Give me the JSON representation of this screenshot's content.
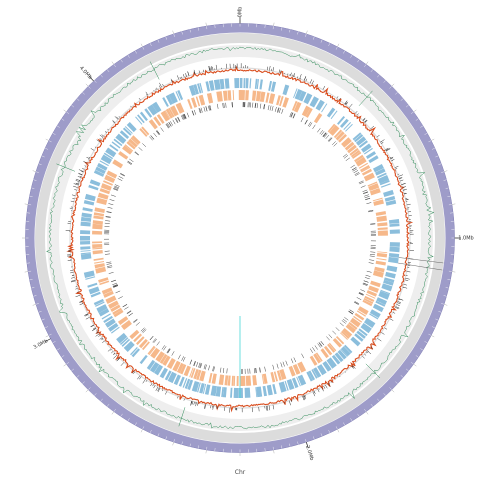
{
  "figure": {
    "chromosome_label": "Chr",
    "scale_labels": [
      {
        "text": "0Mb",
        "angle_deg": 0
      },
      {
        "text": "1.0Mb",
        "angle_deg": 90
      },
      {
        "text": "2.0Mb",
        "angle_deg": 162
      },
      {
        "text": "3.0Mb",
        "angle_deg": 242
      },
      {
        "text": "4.0Mb",
        "angle_deg": 317
      }
    ]
  },
  "colors": {
    "ideogram": "#9e9cc9",
    "ideogram_tick": "#ffffff",
    "track_background": "#dcdcdc",
    "track_background_inner": "#eeeeee",
    "gc_skew": "#2e8b57",
    "gene_density": "#d94e1f",
    "gene_markers": "#333333",
    "forward_genes": "#8bbedc",
    "reverse_genes": "#f6b88a",
    "inner_markers": "#444444",
    "link_line": "#47d7d7"
  },
  "tracks": [
    {
      "name": "ideogram"
    },
    {
      "name": "gc-skew"
    },
    {
      "name": "gene-density"
    },
    {
      "name": "forward-strand-genes"
    },
    {
      "name": "reverse-strand-genes"
    },
    {
      "name": "inner-markers"
    }
  ]
}
